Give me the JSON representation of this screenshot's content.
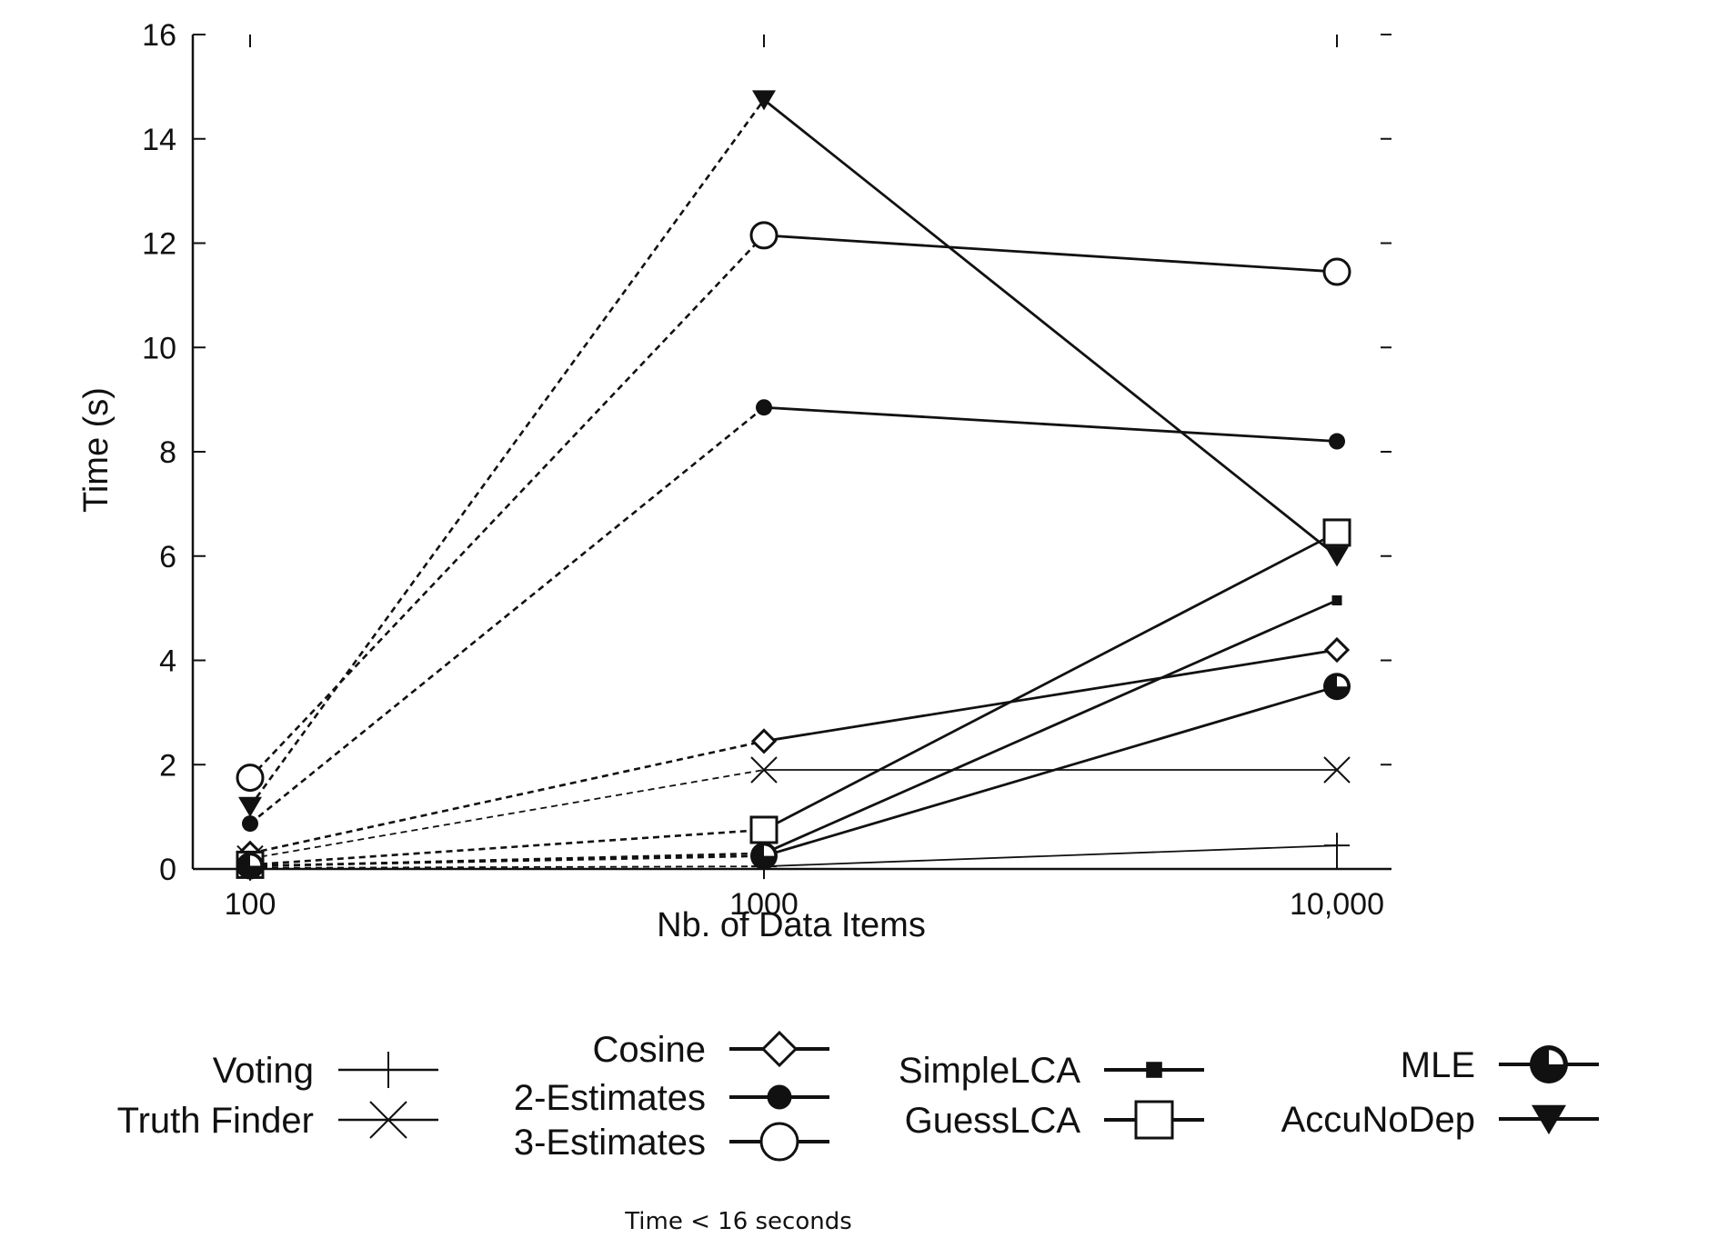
{
  "chart_data": {
    "type": "line",
    "xlabel": "Nb. of Data Items",
    "ylabel": "Time (s)",
    "x_categories": [
      "100",
      "1000",
      "10,000"
    ],
    "ylim": [
      0,
      16
    ],
    "yticks": [
      "0",
      "2",
      "4",
      "6",
      "8",
      "10",
      "12",
      "14",
      "16"
    ],
    "grid": false,
    "legend_position": "bottom",
    "caption": "Time <  16  seconds",
    "series": [
      {
        "name": "Voting",
        "marker": "plus",
        "style": "solid-thin",
        "values": [
          0.02,
          0.05,
          0.45
        ]
      },
      {
        "name": "Truth Finder",
        "marker": "cross",
        "style": "solid-thin",
        "values": [
          0.2,
          1.9,
          1.9
        ]
      },
      {
        "name": "Cosine",
        "marker": "diamond",
        "style": "solid",
        "values": [
          0.3,
          2.45,
          4.2
        ]
      },
      {
        "name": "2-Estimates",
        "marker": "filled-circle",
        "style": "solid",
        "values": [
          0.87,
          8.85,
          8.2
        ]
      },
      {
        "name": "3-Estimates",
        "marker": "open-circle",
        "style": "solid",
        "values": [
          1.75,
          12.15,
          11.45
        ]
      },
      {
        "name": "SimpleLCA",
        "marker": "filled-square",
        "style": "solid",
        "values": [
          0.05,
          0.3,
          5.15
        ]
      },
      {
        "name": "GuessLCA",
        "marker": "open-square",
        "style": "solid",
        "values": [
          0.08,
          0.75,
          6.45
        ]
      },
      {
        "name": "MLE",
        "marker": "pie-circle",
        "style": "solid",
        "values": [
          0.06,
          0.25,
          3.5
        ]
      },
      {
        "name": "AccuNoDep",
        "marker": "triangle-down",
        "style": "solid",
        "values": [
          1.2,
          14.75,
          6.0
        ]
      }
    ],
    "dashed_segments_note": ""
  }
}
